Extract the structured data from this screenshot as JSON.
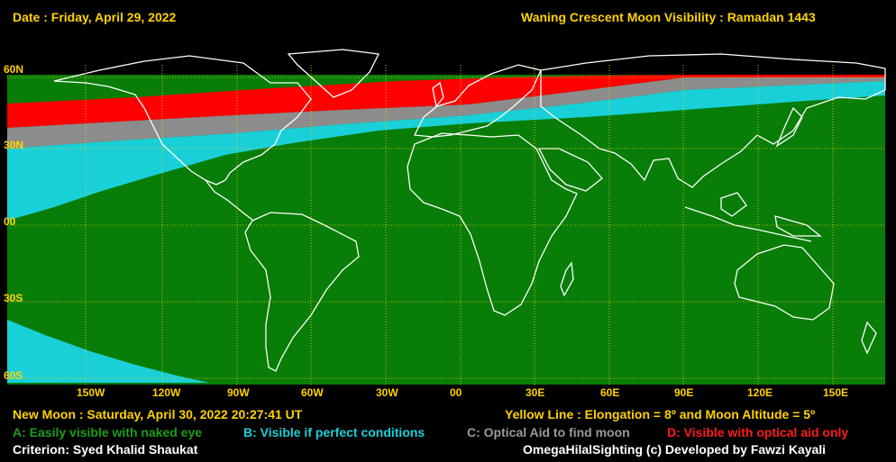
{
  "header": {
    "date": "Date : Friday, April 29, 2022",
    "title": "Waning Crescent Moon Visibility : Ramadan 1443"
  },
  "map": {
    "lat_labels": [
      "60N",
      "30N",
      "00",
      "30S",
      "60S"
    ],
    "lon_labels": [
      "150W",
      "120W",
      "90W",
      "60W",
      "30W",
      "00",
      "30E",
      "60E",
      "90E",
      "120E",
      "150E"
    ],
    "colors": {
      "A": "#087d08",
      "B": "#19d0d8",
      "C": "#8c8c8c",
      "D": "#ff0000",
      "grid": "#ffd200",
      "coast": "#ffffff",
      "night": "#000000"
    }
  },
  "footer": {
    "new_moon": "New Moon : Saturday, April 30, 2022  20:27:41  UT",
    "yellow_line": "Yellow Line : Elongation = 8º  and Moon Altitude = 5º",
    "legend": {
      "A": "A: Easily visible with naked eye",
      "B": "B: Visible if perfect conditions",
      "C": "C: Optical Aid to find moon",
      "D": "D: Visible with optical aid only"
    },
    "criterion": "Criterion: Syed Khalid Shaukat",
    "credit": "OmegaHilalSighting  (c)  Developed by Fawzi Kayali"
  }
}
